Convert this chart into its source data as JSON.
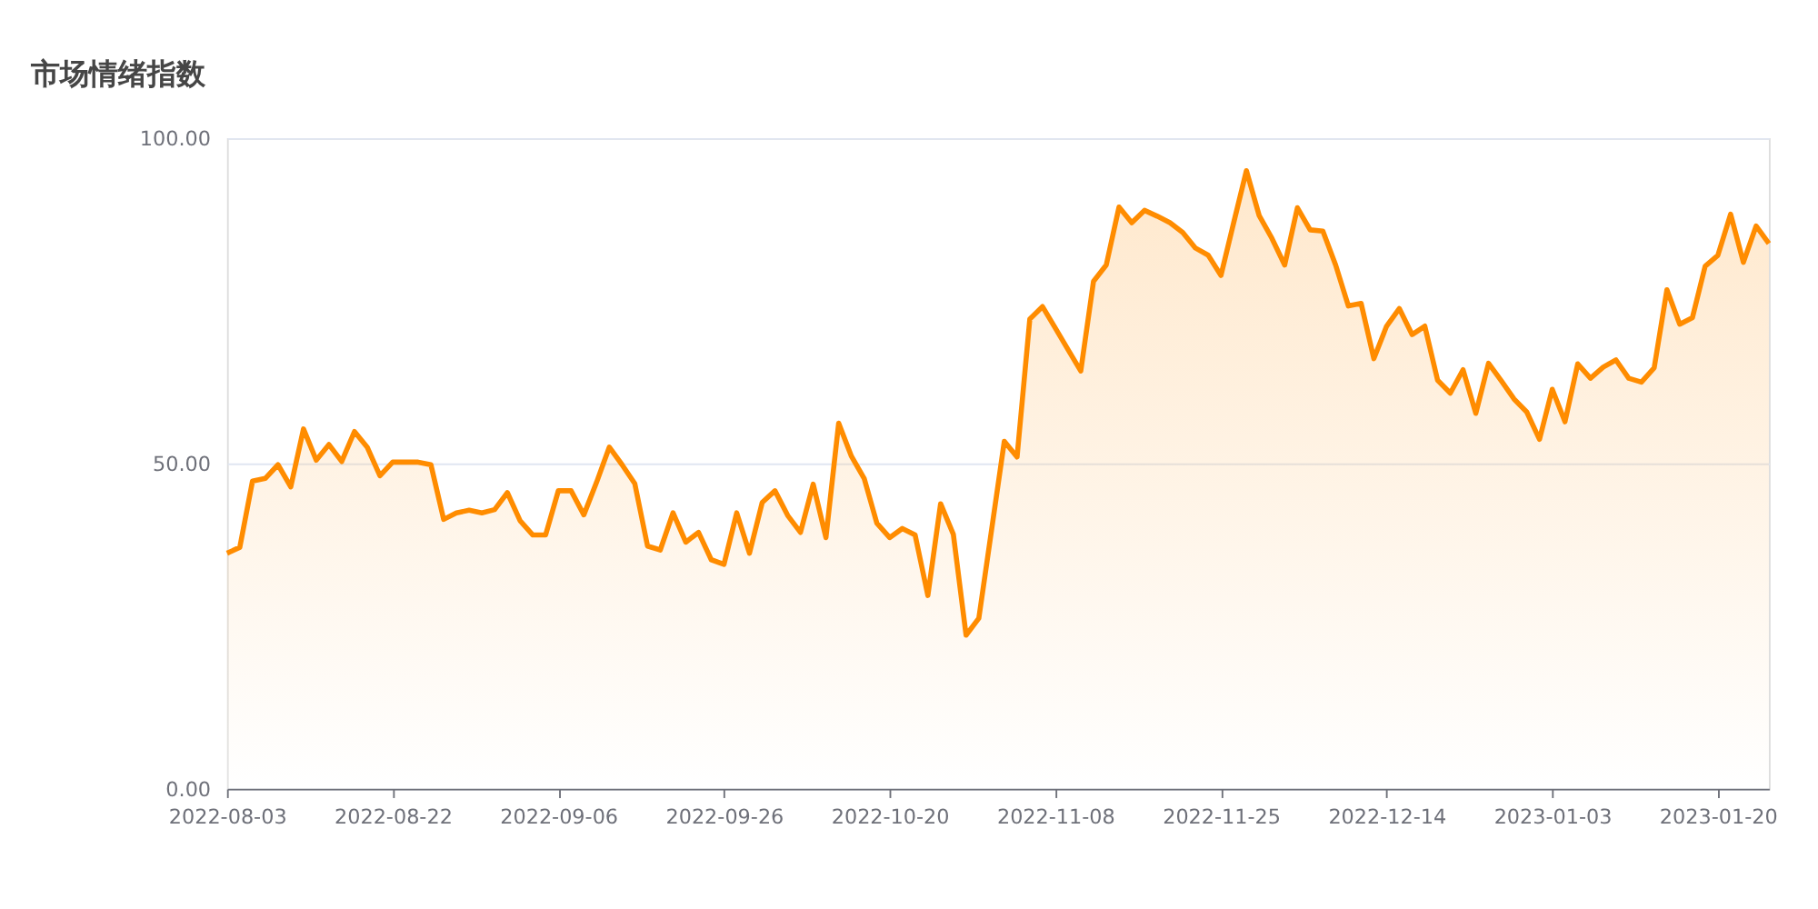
{
  "chart_data": {
    "type": "area",
    "title": "市场情绪指数",
    "categories": [
      "2022-08-03",
      null,
      null,
      null,
      null,
      null,
      null,
      null,
      null,
      null,
      null,
      null,
      null,
      "2022-08-22",
      null,
      null,
      null,
      null,
      null,
      null,
      null,
      null,
      null,
      null,
      null,
      null,
      "2022-09-06",
      null,
      null,
      null,
      null,
      null,
      null,
      null,
      null,
      null,
      null,
      null,
      null,
      "2022-09-26",
      null,
      null,
      null,
      null,
      null,
      null,
      null,
      null,
      null,
      null,
      null,
      null,
      "2022-10-20",
      null,
      null,
      null,
      null,
      null,
      null,
      null,
      null,
      null,
      null,
      null,
      null,
      "2022-11-08",
      null,
      null,
      null,
      null,
      null,
      null,
      null,
      null,
      null,
      null,
      null,
      null,
      "2022-11-25",
      null,
      null,
      null,
      null,
      null,
      null,
      null,
      null,
      null,
      null,
      null,
      null,
      "2022-12-14",
      null,
      null,
      null,
      null,
      null,
      null,
      null,
      null,
      null,
      null,
      null,
      null,
      "2023-01-03",
      null,
      null,
      null,
      null,
      null,
      null,
      null,
      null,
      null,
      null,
      null,
      null,
      "2023-01-20",
      null,
      null,
      null,
      null
    ],
    "series": [
      {
        "color": "#ff8c00",
        "values": [
          36.2,
          37.1,
          47.3,
          47.7,
          49.8,
          46.4,
          55.3,
          50.5,
          52.9,
          50.3,
          54.9,
          52.5,
          48.1,
          50.2,
          50.2,
          50.2,
          49.8,
          41.4,
          42.4,
          42.8,
          42.4,
          42.9,
          45.5,
          41.2,
          39.0,
          39.0,
          45.8,
          45.8,
          42.1,
          47.1,
          52.5,
          49.8,
          46.9,
          37.3,
          36.7,
          42.4,
          37.9,
          39.4,
          35.2,
          34.5,
          42.4,
          36.2,
          44.0,
          45.8,
          42.0,
          39.4,
          46.8,
          38.6,
          56.2,
          51.1,
          47.7,
          40.8,
          38.6,
          40.0,
          39.0,
          29.7,
          43.8,
          39.1,
          23.6,
          26.2,
          39.8,
          53.4,
          51.0,
          72.2,
          74.1,
          70.8,
          67.5,
          64.2,
          78.0,
          80.5,
          89.4,
          87.0,
          88.9,
          88.0,
          87.0,
          85.5,
          83.1,
          82.0,
          78.9,
          87.0,
          95.0,
          88.1,
          84.6,
          80.5,
          89.3,
          85.9,
          85.7,
          80.5,
          74.2,
          74.6,
          66.1,
          71.1,
          73.8,
          69.8,
          71.1,
          62.8,
          60.8,
          64.4,
          57.7,
          65.4,
          62.7,
          59.9,
          57.9,
          53.7,
          61.4,
          56.4,
          65.3,
          63.1,
          64.8,
          65.9,
          63.1,
          62.5,
          64.7,
          76.7,
          71.4,
          72.4,
          80.3,
          82.0,
          88.3,
          80.9,
          86.5,
          83.8
        ]
      }
    ],
    "ylim": [
      0,
      100
    ],
    "yticks": [
      {
        "value": 0,
        "label": "0.00"
      },
      {
        "value": 50,
        "label": "50.00"
      },
      {
        "value": 100,
        "label": "100.00"
      }
    ],
    "grid": "y"
  }
}
